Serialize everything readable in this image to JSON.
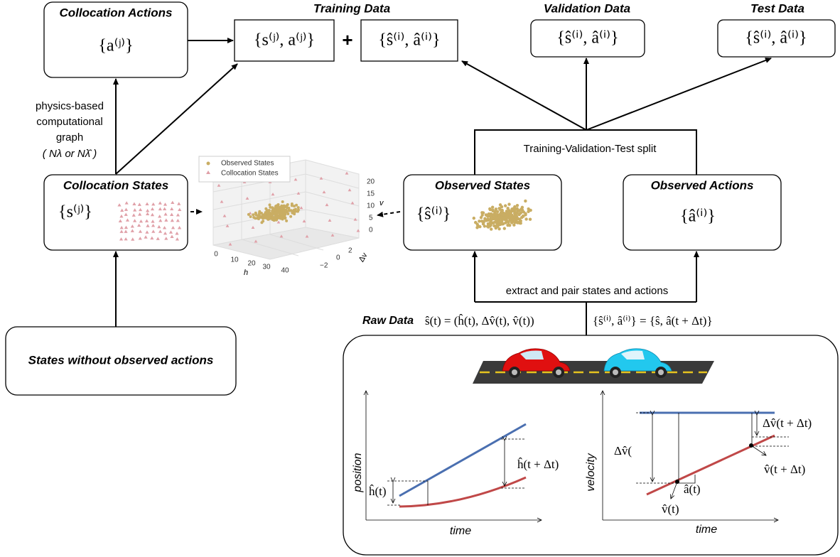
{
  "collocation_actions": {
    "title": "Collocation Actions",
    "math": "{a⁽ʲ⁾}"
  },
  "training_data": {
    "title": "Training Data",
    "collocation_math": "{s⁽ʲ⁾, a⁽ʲ⁾}",
    "plus": "+",
    "observed_math": "{ŝ⁽ⁱ⁾, â⁽ⁱ⁾}"
  },
  "validation_data": {
    "title": "Validation Data",
    "math": "{ŝ⁽ⁱ⁾, â⁽ⁱ⁾}"
  },
  "test_data": {
    "title": "Test  Data",
    "math": "{ŝ⁽ⁱ⁾, â⁽ⁱ⁾}"
  },
  "physics_label": [
    "physics-based",
    "computational",
    "graph",
    "( Nλ or Nλ̂ )"
  ],
  "split_label": "Training-Validation-Test split",
  "collocation_states": {
    "title": "Collocation States",
    "math": "{s⁽ʲ⁾}"
  },
  "observed_states": {
    "title": "Observed States",
    "math": "{ŝ⁽ⁱ⁾}"
  },
  "observed_actions": {
    "title": "Observed Actions",
    "math": "{â⁽ⁱ⁾}"
  },
  "scatter_3d": {
    "legend": [
      "Observed States",
      "Collocation States"
    ],
    "v_ticks": [
      "20",
      "15",
      "10",
      "5",
      "0"
    ],
    "v_label": "v",
    "h_ticks": [
      "0",
      "10",
      "20",
      "30",
      "40"
    ],
    "h_label": "h",
    "dv_ticks": [
      "2",
      "0",
      "−2"
    ],
    "dv_label": "Δv"
  },
  "extract_label": "extract and pair states and actions",
  "raw_data": {
    "title": "Raw Data",
    "state_eq": "ŝ(t) = (ĥ(t), Δv̂(t), v̂(t))",
    "pair_eq": "{ŝ⁽ⁱ⁾, â⁽ⁱ⁾} = {ŝ, â(t + Δt)}"
  },
  "states_without_actions": "States without observed actions",
  "position_plot": {
    "y_label": "position",
    "x_label": "time",
    "h_t": "ĥ(t)",
    "h_t_dt": "ĥ(t + Δt)"
  },
  "velocity_plot": {
    "y_label": "velocity",
    "x_label": "time",
    "dv_t": "Δv̂(",
    "dv_t_dt": "Δv̂(t + Δt)",
    "v_t_dt": "v̂(t + Δt)",
    "a_t": "â(t)",
    "v_t": "v̂(t)"
  }
}
